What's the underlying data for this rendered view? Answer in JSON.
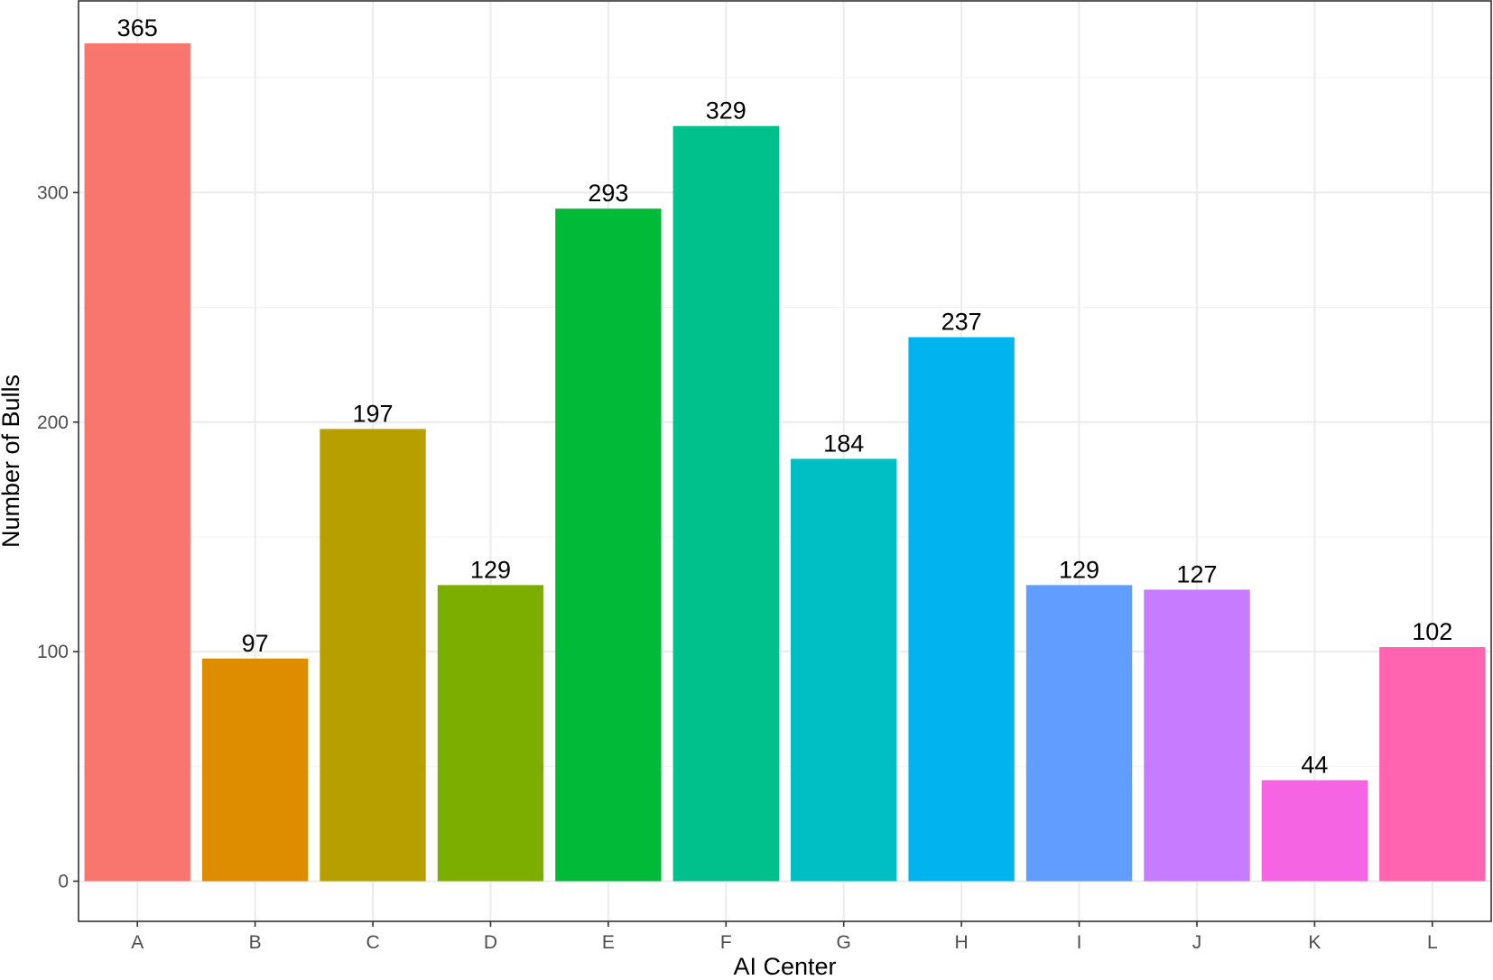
{
  "chart_data": {
    "type": "bar",
    "title": "",
    "xlabel": "AI Center",
    "ylabel": "Number of Bulls",
    "categories": [
      "A",
      "B",
      "C",
      "D",
      "E",
      "F",
      "G",
      "H",
      "I",
      "J",
      "K",
      "L"
    ],
    "values": [
      365,
      97,
      197,
      129,
      293,
      329,
      184,
      237,
      129,
      127,
      44,
      102
    ],
    "data_labels": [
      "365",
      "97",
      "197",
      "129",
      "293",
      "329",
      "184",
      "237",
      "129",
      "127",
      "44",
      "102"
    ],
    "colors": [
      "#F8766D",
      "#DE8C00",
      "#B79F00",
      "#7CAE00",
      "#00BA38",
      "#00C08B",
      "#00BFC4",
      "#00B4F0",
      "#619CFF",
      "#C77CFF",
      "#F564E3",
      "#FF64B0"
    ],
    "y_ticks": [
      0,
      100,
      200,
      300
    ],
    "y_tick_labels": [
      "0",
      "100",
      "200",
      "300"
    ],
    "ylim": [
      -17.5,
      383.5
    ],
    "grid": true,
    "legend": "none",
    "theme": {
      "panel_border": "#333333",
      "grid_major": "#ebebeb",
      "grid_minor": "#f2f2f2",
      "tick_color": "#333333"
    }
  }
}
